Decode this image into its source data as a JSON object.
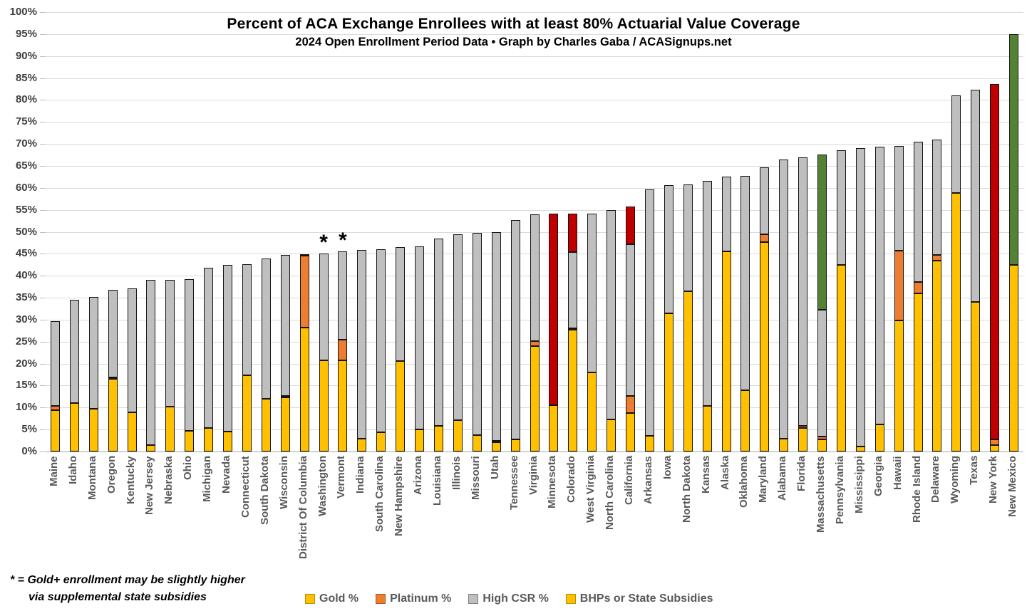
{
  "chart_data": {
    "type": "bar",
    "variant": "stacked",
    "title": "Percent of ACA Exchange Enrollees with at least 80% Actuarial Value Coverage",
    "subtitle": "2024 Open Enrollment Period Data  •  Graph by Charles Gaba / ACASignups.net",
    "xlabel": "",
    "ylabel": "",
    "ylim": [
      0,
      100
    ],
    "ytick_step": 5,
    "ytick_suffix": "%",
    "grid": true,
    "legend_position": "bottom",
    "footnote_line1": "* = Gold+ enrollment may be slightly higher",
    "footnote_line2": "via supplemental state subsidies",
    "asterisk_symbol": "*",
    "colors": {
      "gold": "#FFC000",
      "platinum": "#ED7D31",
      "high_csr": "#BFBFBF",
      "special_red": "#C00000",
      "special_green": "#548235",
      "gridline": "#DADADA"
    },
    "legend": [
      {
        "label": "Gold %",
        "color": "#FFC000",
        "border": "#BF9000"
      },
      {
        "label": "Platinum %",
        "color": "#ED7D31",
        "border": "#AE5A21"
      },
      {
        "label": "High CSR %",
        "color": "#BFBFBF",
        "border": "#7F7F7F"
      },
      {
        "label": "BHPs or State Subsidies",
        "color": "#FFC000",
        "border": "#BF9000"
      }
    ],
    "series_order": [
      "gold",
      "platinum",
      "high_csr",
      "special"
    ],
    "states": [
      {
        "name": "Maine",
        "gold": 9.4,
        "platinum": 0.9,
        "high_csr": 19.4,
        "special": 0
      },
      {
        "name": "Idaho",
        "gold": 11.1,
        "platinum": 0,
        "high_csr": 23.4,
        "special": 0
      },
      {
        "name": "Montana",
        "gold": 9.8,
        "platinum": 0,
        "high_csr": 25.4,
        "special": 0
      },
      {
        "name": "Oregon",
        "gold": 16.5,
        "platinum": 0.4,
        "high_csr": 19.9,
        "special": 0
      },
      {
        "name": "Kentucky",
        "gold": 8.9,
        "platinum": 0,
        "high_csr": 28.2,
        "special": 0
      },
      {
        "name": "New Jersey",
        "gold": 1.5,
        "platinum": 0,
        "high_csr": 37.5,
        "special": 0
      },
      {
        "name": "Nebraska",
        "gold": 10.2,
        "platinum": 0,
        "high_csr": 28.8,
        "special": 0
      },
      {
        "name": "Ohio",
        "gold": 4.7,
        "platinum": 0,
        "high_csr": 34.5,
        "special": 0
      },
      {
        "name": "Michigan",
        "gold": 5.4,
        "platinum": 0,
        "high_csr": 36.4,
        "special": 0
      },
      {
        "name": "Nevada",
        "gold": 4.6,
        "platinum": 0,
        "high_csr": 37.8,
        "special": 0
      },
      {
        "name": "Connecticut",
        "gold": 17.4,
        "platinum": 0,
        "high_csr": 25.2,
        "special": 0
      },
      {
        "name": "South Dakota",
        "gold": 12.0,
        "platinum": 0,
        "high_csr": 32.0,
        "special": 0
      },
      {
        "name": "Wisconsin",
        "gold": 12.3,
        "platinum": 0.4,
        "high_csr": 32.0,
        "special": 0
      },
      {
        "name": "District Of Columbia",
        "gold": 28.2,
        "platinum": 16.3,
        "high_csr": 0.4,
        "special": 0
      },
      {
        "name": "Washington",
        "gold": 20.8,
        "platinum": 0,
        "high_csr": 24.2,
        "special": 0,
        "asterisk": true
      },
      {
        "name": "Vermont",
        "gold": 20.8,
        "platinum": 4.6,
        "high_csr": 20.2,
        "special": 0,
        "asterisk": true
      },
      {
        "name": "Indiana",
        "gold": 3.0,
        "platinum": 0,
        "high_csr": 42.8,
        "special": 0
      },
      {
        "name": "South Carolina",
        "gold": 4.4,
        "platinum": 0,
        "high_csr": 41.6,
        "special": 0
      },
      {
        "name": "New Hampshire",
        "gold": 20.6,
        "platinum": 0,
        "high_csr": 26.0,
        "special": 0
      },
      {
        "name": "Arizona",
        "gold": 5.0,
        "platinum": 0,
        "high_csr": 41.6,
        "special": 0
      },
      {
        "name": "Louisiana",
        "gold": 5.8,
        "platinum": 0,
        "high_csr": 42.7,
        "special": 0
      },
      {
        "name": "Illinois",
        "gold": 7.2,
        "platinum": 0,
        "high_csr": 42.2,
        "special": 0
      },
      {
        "name": "Missouri",
        "gold": 3.8,
        "platinum": 0,
        "high_csr": 45.9,
        "special": 0
      },
      {
        "name": "Utah",
        "gold": 2.1,
        "platinum": 0.4,
        "high_csr": 47.5,
        "special": 0
      },
      {
        "name": "Tennessee",
        "gold": 2.7,
        "platinum": 0,
        "high_csr": 49.9,
        "special": 0
      },
      {
        "name": "Virginia",
        "gold": 24.0,
        "platinum": 1.2,
        "high_csr": 28.7,
        "special": 0
      },
      {
        "name": "Minnesota",
        "gold": 10.5,
        "platinum": 0,
        "high_csr": 0,
        "special": 43.7,
        "special_color": "red"
      },
      {
        "name": "Colorado",
        "gold": 27.7,
        "platinum": 0.3,
        "high_csr": 17.4,
        "special": 8.8,
        "special_color": "red"
      },
      {
        "name": "West Virginia",
        "gold": 18.0,
        "platinum": 0,
        "high_csr": 36.2,
        "special": 0
      },
      {
        "name": "North Carolina",
        "gold": 7.3,
        "platinum": 0,
        "high_csr": 47.7,
        "special": 0
      },
      {
        "name": "California",
        "gold": 8.7,
        "platinum": 3.9,
        "high_csr": 34.6,
        "special": 8.5,
        "special_color": "red"
      },
      {
        "name": "Arkansas",
        "gold": 3.6,
        "platinum": 0,
        "high_csr": 56.0,
        "special": 0
      },
      {
        "name": "Iowa",
        "gold": 31.5,
        "platinum": 0,
        "high_csr": 29.2,
        "special": 0
      },
      {
        "name": "North Dakota",
        "gold": 36.4,
        "platinum": 0,
        "high_csr": 24.4,
        "special": 0
      },
      {
        "name": "Kansas",
        "gold": 10.4,
        "platinum": 0,
        "high_csr": 51.2,
        "special": 0
      },
      {
        "name": "Alaska",
        "gold": 45.6,
        "platinum": 0,
        "high_csr": 17.0,
        "special": 0
      },
      {
        "name": "Oklahoma",
        "gold": 13.9,
        "platinum": 0,
        "high_csr": 48.9,
        "special": 0
      },
      {
        "name": "Maryland",
        "gold": 47.7,
        "platinum": 1.8,
        "high_csr": 15.1,
        "special": 0
      },
      {
        "name": "Alabama",
        "gold": 2.9,
        "platinum": 0,
        "high_csr": 63.6,
        "special": 0
      },
      {
        "name": "Florida",
        "gold": 5.3,
        "platinum": 0.5,
        "high_csr": 61.1,
        "special": 0
      },
      {
        "name": "Massachusetts",
        "gold": 2.7,
        "platinum": 0.7,
        "high_csr": 28.9,
        "special": 35.3,
        "special_color": "green"
      },
      {
        "name": "Pennsylvania",
        "gold": 42.4,
        "platinum": 0,
        "high_csr": 26.2,
        "special": 0
      },
      {
        "name": "Mississippi",
        "gold": 1.1,
        "platinum": 0,
        "high_csr": 67.9,
        "special": 0
      },
      {
        "name": "Georgia",
        "gold": 6.2,
        "platinum": 0,
        "high_csr": 63.1,
        "special": 0
      },
      {
        "name": "Hawaii",
        "gold": 29.8,
        "platinum": 15.9,
        "high_csr": 23.9,
        "special": 0
      },
      {
        "name": "Rhode Island",
        "gold": 36.0,
        "platinum": 2.5,
        "high_csr": 32.0,
        "special": 0
      },
      {
        "name": "Delaware",
        "gold": 43.4,
        "platinum": 1.4,
        "high_csr": 26.2,
        "special": 0
      },
      {
        "name": "Wyoming",
        "gold": 58.8,
        "platinum": 0,
        "high_csr": 22.2,
        "special": 0
      },
      {
        "name": "Texas",
        "gold": 34.0,
        "platinum": 0,
        "high_csr": 48.3,
        "special": 0
      },
      {
        "name": "New York",
        "gold": 1.4,
        "platinum": 1.4,
        "high_csr": 0,
        "special": 80.8,
        "special_color": "red"
      },
      {
        "name": "New Mexico",
        "gold": 42.4,
        "platinum": 0,
        "high_csr": 0,
        "special": 52.6,
        "special_color": "green"
      }
    ]
  }
}
